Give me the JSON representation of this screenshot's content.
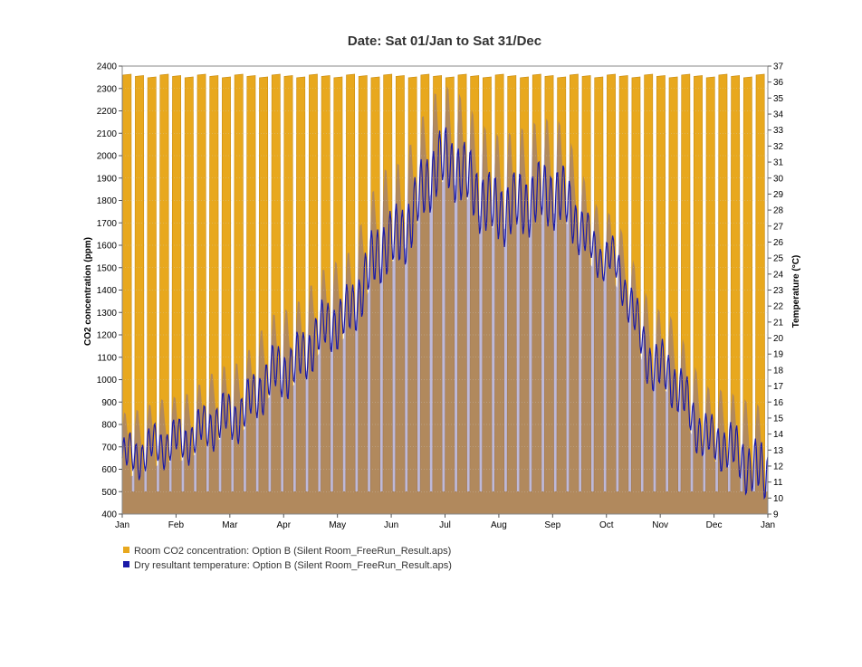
{
  "chart_data": {
    "type": "area",
    "title": "Date: Sat 01/Jan to Sat 31/Dec",
    "x_ticks": [
      "Jan",
      "Feb",
      "Mar",
      "Apr",
      "May",
      "Jun",
      "Jul",
      "Aug",
      "Sep",
      "Oct",
      "Nov",
      "Dec",
      "Jan"
    ],
    "y_left": {
      "label": "CO2 concentration (ppm)",
      "min": 400,
      "max": 2400,
      "step": 100
    },
    "y_right": {
      "label": "Temperature (°C)",
      "min": 9,
      "max": 37,
      "step": 1
    },
    "grid": true,
    "legend_position": "bottom-left",
    "series": [
      {
        "name": "Room CO2 concentration: Option B (Silent Room_FreeRun_Result.aps)",
        "color": "#e8a81e",
        "axis": "left",
        "pattern": "weekly occupancy cycle: ~500 ppm at weekends/nights, rising to ~2350 ppm on occupied weekdays",
        "weekday_peak_ppm": 2360,
        "baseline_ppm": 500
      },
      {
        "name": "Dry resultant temperature: Option B (Silent Room_FreeRun_Result.aps)",
        "color": "#1a1aa8",
        "axis": "right",
        "monthly_values_degC": {
          "month_start": [
            "Jan",
            "Feb",
            "Mar",
            "Apr",
            "May",
            "Jun",
            "Jul",
            "Aug",
            "Sep",
            "Oct",
            "Nov",
            "Dec",
            "Jan"
          ],
          "mean": [
            12.5,
            13.5,
            15.0,
            18.0,
            21.0,
            26.0,
            31.0,
            28.0,
            29.0,
            25.0,
            18.0,
            13.5,
            11.5
          ],
          "max": [
            15.5,
            16.5,
            18.5,
            22.0,
            25.0,
            31.0,
            36.0,
            33.0,
            34.0,
            28.0,
            22.0,
            17.0,
            16.0
          ]
        }
      }
    ]
  }
}
